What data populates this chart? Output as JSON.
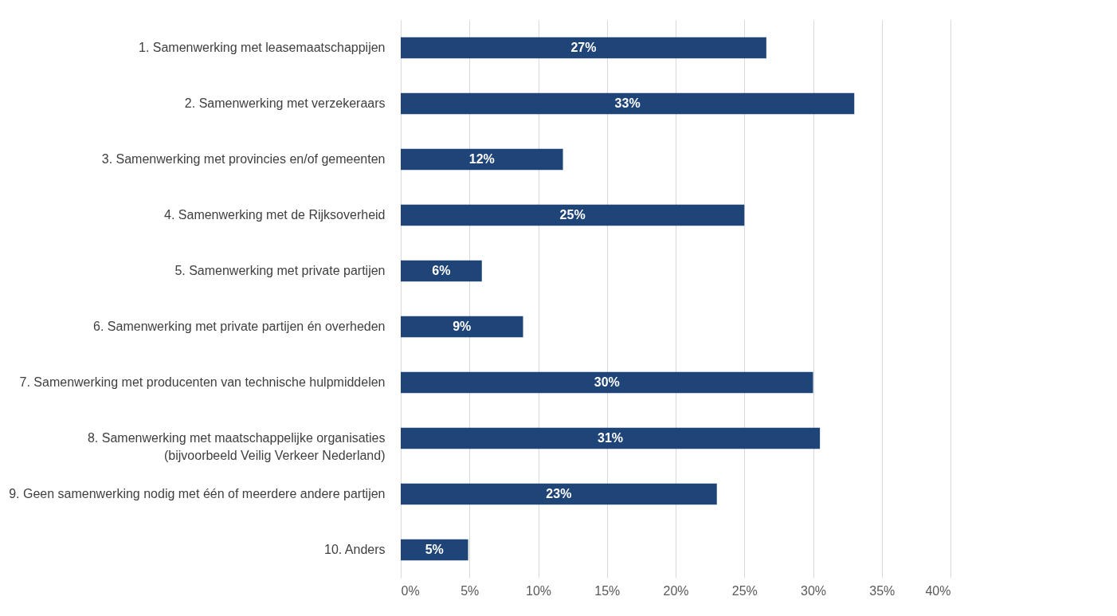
{
  "chart_data": {
    "type": "bar",
    "orientation": "horizontal",
    "categories": [
      "1. Samenwerking met leasemaatschappijen",
      "2. Samenwerking met verzekeraars",
      "3. Samenwerking met provincies en/of gemeenten",
      "4. Samenwerking met de Rijksoverheid",
      "5. Samenwerking met private partijen",
      "6. Samenwerking met private partijen én overheden",
      "7. Samenwerking met producenten van technische hulpmiddelen",
      "8. Samenwerking met maatschappelijke organisaties (bijvoorbeeld Veilig Verkeer Nederland)",
      "9. Geen samenwerking nodig met één of meerdere andere partijen",
      "10. Anders"
    ],
    "values": [
      26.6,
      33,
      11.8,
      25,
      5.9,
      8.9,
      30,
      30.5,
      23,
      4.9
    ],
    "value_labels": [
      "27%",
      "33%",
      "12%",
      "25%",
      "6%",
      "9%",
      "30%",
      "31%",
      "23%",
      "5%"
    ],
    "color": "#1f4478",
    "xlim": [
      0,
      40
    ],
    "xticks": [
      {
        "value": 0,
        "label": "0%"
      },
      {
        "value": 5,
        "label": "5%"
      },
      {
        "value": 10,
        "label": "10%"
      },
      {
        "value": 15,
        "label": "15%"
      },
      {
        "value": 20,
        "label": "20%"
      },
      {
        "value": 25,
        "label": "25%"
      },
      {
        "value": 30,
        "label": "30%"
      },
      {
        "value": 35,
        "label": "35%"
      },
      {
        "value": 40,
        "label": "40%"
      }
    ],
    "grid": "x"
  }
}
